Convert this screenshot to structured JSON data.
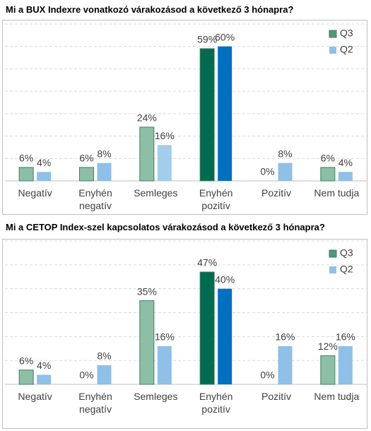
{
  "chart_data": [
    {
      "type": "bar",
      "title": "Mi a BUX Indexre vonatkozó várakozásod a következő 3 hónapra?",
      "categories": [
        "Negatív",
        "Enyhén negatív",
        "Semleges",
        "Enyhén pozitív",
        "Pozitív",
        "Nem tudja"
      ],
      "series": [
        {
          "name": "Q3",
          "color": [
            "#8dbfa7",
            "#8dbfa7",
            "#8dbfa7",
            "#006b4f",
            "#8dbfa7",
            "#8dbfa7"
          ],
          "edgecolor": "#3f7f62",
          "values": [
            6,
            6,
            24,
            59,
            0,
            6
          ],
          "value_labels": [
            "6%",
            "6%",
            "24%",
            "59%",
            "0%",
            "6%"
          ]
        },
        {
          "name": "Q2",
          "color": [
            "#8ec0e8",
            "#8ec0e8",
            "#a3cdec",
            "#0070c0",
            "#8ec0e8",
            "#8ec0e8"
          ],
          "values": [
            4,
            8,
            16,
            60,
            8,
            4
          ],
          "value_labels": [
            "4%",
            "8%",
            "16%",
            "60%",
            "8%",
            "4%"
          ]
        }
      ],
      "ylim": [
        0,
        70
      ],
      "yticks": [
        0,
        10,
        20,
        30,
        40,
        50,
        60,
        70
      ],
      "grid": true,
      "legend": "upper right"
    },
    {
      "type": "bar",
      "title": "Mi a CETOP Index-szel kapcsolatos várakozásod a következő 3 hónapra?",
      "categories": [
        "Negatív",
        "Enyhén negatív",
        "Semleges",
        "Enyhén pozitív",
        "Pozitív",
        "Nem tudja"
      ],
      "series": [
        {
          "name": "Q3",
          "color": [
            "#8dbfa7",
            "#8dbfa7",
            "#8dbfa7",
            "#006b4f",
            "#8dbfa7",
            "#8dbfa7"
          ],
          "edgecolor": "#3f7f62",
          "values": [
            6,
            0,
            35,
            47,
            0,
            12
          ],
          "value_labels": [
            "6%",
            "0%",
            "35%",
            "47%",
            "0%",
            "12%"
          ]
        },
        {
          "name": "Q2",
          "color": [
            "#8ec0e8",
            "#8ec0e8",
            "#8ec0e8",
            "#0070c0",
            "#8ec0e8",
            "#8ec0e8"
          ],
          "values": [
            4,
            8,
            16,
            40,
            16,
            16
          ],
          "value_labels": [
            "4%",
            "8%",
            "16%",
            "40%",
            "16%",
            "16%"
          ]
        }
      ],
      "ylim": [
        0,
        60
      ],
      "yticks": [
        0,
        10,
        20,
        30,
        40,
        50,
        60
      ],
      "grid": true,
      "legend": "upper right"
    }
  ]
}
